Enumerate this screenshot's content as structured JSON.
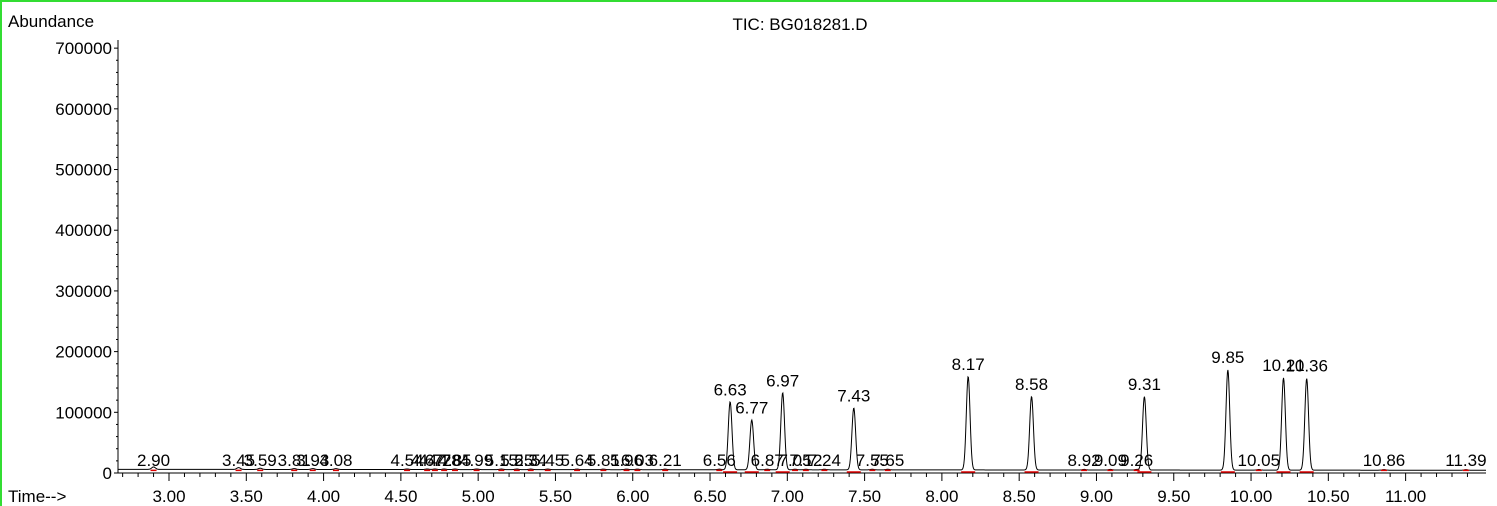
{
  "chart_data": {
    "type": "line",
    "title": "TIC: BG018281.D",
    "ylabel": "Abundance",
    "xlabel": "Time-->",
    "xlim": [
      2.67,
      11.52
    ],
    "ylim": [
      0,
      720000
    ],
    "y_ticks": [
      0,
      100000,
      200000,
      300000,
      400000,
      500000,
      600000,
      700000
    ],
    "y_tick_labels": [
      "0",
      "100000",
      "200000",
      "300000",
      "400000",
      "500000",
      "600000",
      "700000"
    ],
    "x_ticks": [
      3.0,
      3.5,
      4.0,
      4.5,
      5.0,
      5.5,
      6.0,
      6.5,
      7.0,
      7.5,
      8.0,
      8.5,
      9.0,
      9.5,
      10.0,
      10.5,
      11.0
    ],
    "x_tick_labels": [
      "3.00",
      "3.50",
      "4.00",
      "4.50",
      "5.00",
      "5.50",
      "6.00",
      "6.50",
      "7.00",
      "7.50",
      "8.00",
      "8.50",
      "9.00",
      "9.50",
      "10.00",
      "10.50",
      "11.00"
    ],
    "baseline": 6000,
    "grid": false,
    "line_color": "#000000",
    "marker_color": "#dd0000",
    "frame_color": "#33dd33",
    "peaks": [
      {
        "rt": 2.9,
        "label": "2.90",
        "height": 10000
      },
      {
        "rt": 3.45,
        "label": "3.45",
        "height": 9000
      },
      {
        "rt": 3.59,
        "label": "3.59",
        "height": 8000
      },
      {
        "rt": 3.81,
        "label": "3.81",
        "height": 7500
      },
      {
        "rt": 3.93,
        "label": "3.93",
        "height": 7500
      },
      {
        "rt": 4.08,
        "label": "4.08",
        "height": 7500
      },
      {
        "rt": 4.54,
        "label": "4.54",
        "height": 7000
      },
      {
        "rt": 4.67,
        "label": "4.67",
        "height": 7000
      },
      {
        "rt": 4.72,
        "label": "4.72",
        "height": 7000
      },
      {
        "rt": 4.78,
        "label": "4.78",
        "height": 7000
      },
      {
        "rt": 4.85,
        "label": "4.85",
        "height": 7000
      },
      {
        "rt": 4.99,
        "label": "4.99",
        "height": 7000
      },
      {
        "rt": 5.15,
        "label": "5.15",
        "height": 7000
      },
      {
        "rt": 5.25,
        "label": "5.25",
        "height": 7000
      },
      {
        "rt": 5.34,
        "label": "5.34",
        "height": 7000
      },
      {
        "rt": 5.45,
        "label": "5.45",
        "height": 7000
      },
      {
        "rt": 5.64,
        "label": "5.64",
        "height": 7000
      },
      {
        "rt": 5.81,
        "label": "5.81",
        "height": 7000
      },
      {
        "rt": 5.96,
        "label": "5.96",
        "height": 7000
      },
      {
        "rt": 6.03,
        "label": "6.03",
        "height": 7000
      },
      {
        "rt": 6.21,
        "label": "6.21",
        "height": 7000
      },
      {
        "rt": 6.56,
        "label": "6.56",
        "height": 7000
      },
      {
        "rt": 6.63,
        "label": "6.63",
        "height": 118000
      },
      {
        "rt": 6.77,
        "label": "6.77",
        "height": 88000
      },
      {
        "rt": 6.87,
        "label": "6.87",
        "height": 7000
      },
      {
        "rt": 6.97,
        "label": "6.97",
        "height": 133000
      },
      {
        "rt": 7.05,
        "label": "7.05",
        "height": 7000
      },
      {
        "rt": 7.12,
        "label": "7.12",
        "height": 7000
      },
      {
        "rt": 7.24,
        "label": "7.24",
        "height": 7000
      },
      {
        "rt": 7.43,
        "label": "7.43",
        "height": 108000
      },
      {
        "rt": 7.55,
        "label": "7.55",
        "height": 7000
      },
      {
        "rt": 7.65,
        "label": "7.65",
        "height": 7000
      },
      {
        "rt": 8.17,
        "label": "8.17",
        "height": 160000
      },
      {
        "rt": 8.58,
        "label": "8.58",
        "height": 127000
      },
      {
        "rt": 8.92,
        "label": "8.92",
        "height": 7000
      },
      {
        "rt": 9.09,
        "label": "9.09",
        "height": 7000
      },
      {
        "rt": 9.26,
        "label": "9.26",
        "height": 7000
      },
      {
        "rt": 9.31,
        "label": "9.31",
        "height": 127000
      },
      {
        "rt": 9.85,
        "label": "9.85",
        "height": 171000
      },
      {
        "rt": 10.05,
        "label": "10.05",
        "height": 7000
      },
      {
        "rt": 10.21,
        "label": "10.21",
        "height": 158000
      },
      {
        "rt": 10.36,
        "label": "10.36",
        "height": 157000
      },
      {
        "rt": 10.86,
        "label": "10.86",
        "height": 7000
      },
      {
        "rt": 11.39,
        "label": "11.39",
        "height": 7000
      }
    ]
  }
}
